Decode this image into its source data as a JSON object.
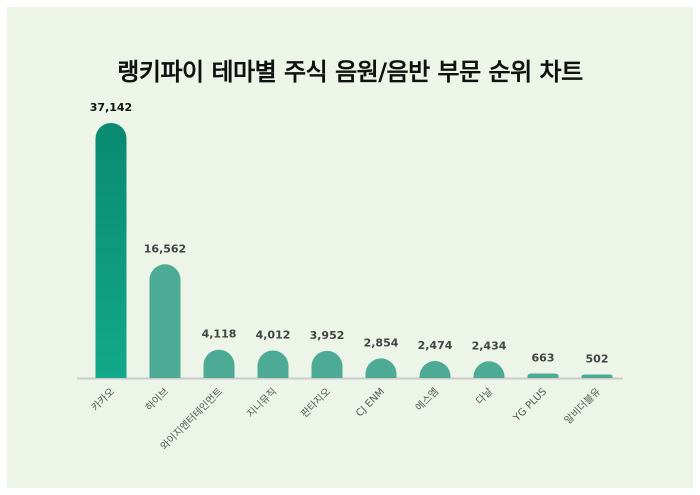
{
  "title": "랭키파이 테마별 주식 음원/음반 부문 순위 차트",
  "chart_data": {
    "type": "bar",
    "title": "랭키파이 테마별 주식 음원/음반 부문 순위 차트",
    "xlabel": "",
    "ylabel": "",
    "categories": [
      "카카오",
      "하이브",
      "와이지엔터테인먼트",
      "지니뮤직",
      "판타지오",
      "CJ ENM",
      "에스엠",
      "다날",
      "YG PLUS",
      "알비더블유"
    ],
    "values": [
      37142,
      16562,
      4118,
      4012,
      3952,
      2854,
      2474,
      2434,
      663,
      502
    ],
    "value_labels": [
      "37,142",
      "16,562",
      "4,118",
      "4,012",
      "3,952",
      "2,854",
      "2,474",
      "2,434",
      "663",
      "502"
    ],
    "ylim": [
      0,
      37142
    ],
    "grid": false,
    "legend": "none",
    "colors": {
      "first_bar_gradient": [
        "#0a8a72",
        "#12a88a"
      ],
      "bar": "#4daa94",
      "baseline": "#cccccc",
      "background": "#edf5e8"
    }
  }
}
